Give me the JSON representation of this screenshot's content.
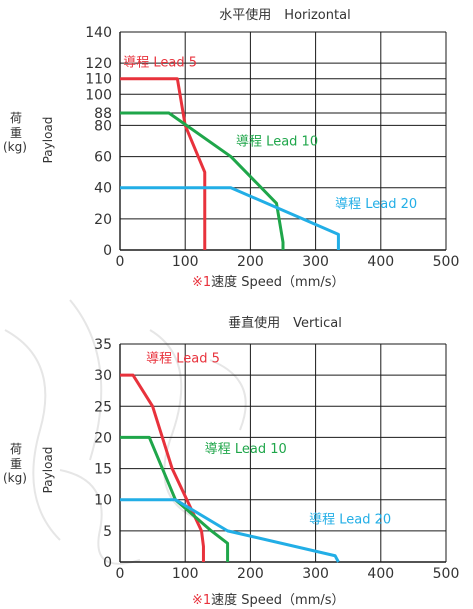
{
  "colors": {
    "lead5": "#e8323c",
    "lead10": "#1fa64a",
    "lead20": "#22aee6",
    "axis": "#1a1a1a",
    "note": "#e8323c"
  },
  "chart_data": [
    {
      "type": "line",
      "title": "水平使用　Horizontal",
      "xlabel_note": "※1",
      "xlabel": "速度 Speed（mm/s）",
      "ylabel_cn": "荷\n重\n(kg)",
      "ylabel_en": "Payload",
      "xlim": [
        0,
        500
      ],
      "ylim": [
        0,
        140
      ],
      "xticks": [
        0,
        100,
        200,
        300,
        400,
        500
      ],
      "yticks": [
        0,
        20,
        40,
        60,
        80,
        88,
        100,
        110,
        120,
        140
      ],
      "grid": true,
      "series": [
        {
          "name": "導程 Lead 5",
          "color_key": "lead5",
          "x": [
            0,
            88,
            100,
            130,
            130
          ],
          "y": [
            110,
            110,
            80,
            50,
            0
          ]
        },
        {
          "name": "導程 Lead 10",
          "color_key": "lead10",
          "x": [
            0,
            75,
            170,
            240,
            250,
            250
          ],
          "y": [
            88,
            88,
            60,
            30,
            5,
            0
          ]
        },
        {
          "name": "導程 Lead 20",
          "color_key": "lead20",
          "x": [
            0,
            170,
            335,
            335
          ],
          "y": [
            40,
            40,
            10,
            0
          ]
        }
      ],
      "series_label_pos": [
        [
          5,
          118
        ],
        [
          178,
          67
        ],
        [
          330,
          27
        ]
      ]
    },
    {
      "type": "line",
      "title": "垂直使用　Vertical",
      "xlabel_note": "※1",
      "xlabel": "速度 Speed（mm/s）",
      "ylabel_cn": "荷\n重\n(kg)",
      "ylabel_en": "Payload",
      "xlim": [
        0,
        500
      ],
      "ylim": [
        0,
        35
      ],
      "xticks": [
        0,
        100,
        200,
        300,
        400,
        500
      ],
      "yticks": [
        0,
        5,
        10,
        15,
        20,
        25,
        30,
        35
      ],
      "grid": true,
      "series": [
        {
          "name": "導程 Lead 5",
          "color_key": "lead5",
          "x": [
            0,
            20,
            50,
            80,
            125,
            128,
            128
          ],
          "y": [
            30,
            30,
            25,
            15,
            5,
            2.5,
            0
          ]
        },
        {
          "name": "導程 Lead 10",
          "color_key": "lead10",
          "x": [
            0,
            45,
            85,
            140,
            165,
            165
          ],
          "y": [
            20,
            20,
            10,
            5,
            3,
            0
          ]
        },
        {
          "name": "導程 Lead 20",
          "color_key": "lead20",
          "x": [
            0,
            85,
            165,
            330,
            335
          ],
          "y": [
            10,
            10,
            5,
            1,
            0
          ]
        }
      ],
      "series_label_pos": [
        [
          40,
          32
        ],
        [
          130,
          17.5
        ],
        [
          290,
          6.2
        ]
      ]
    }
  ]
}
